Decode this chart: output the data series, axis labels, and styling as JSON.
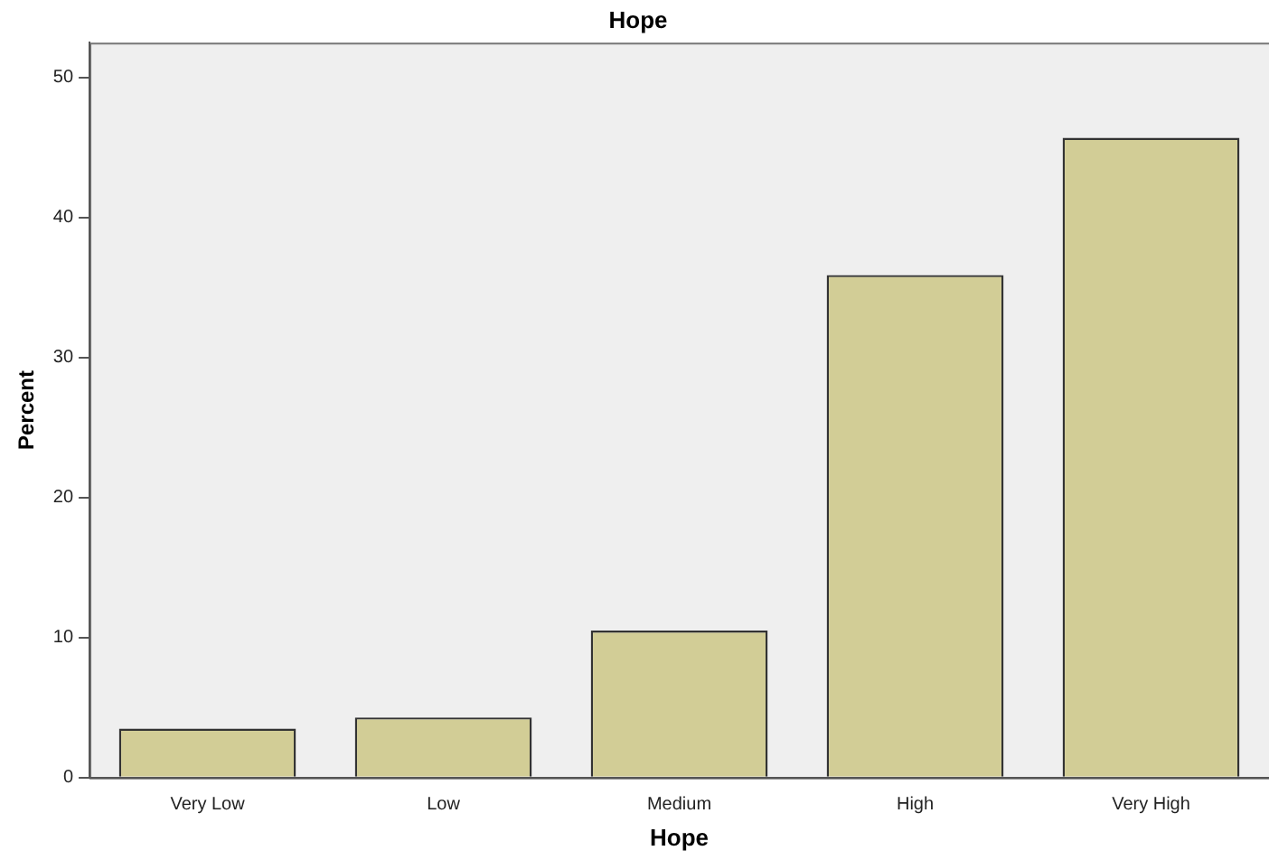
{
  "chart_data": {
    "type": "bar",
    "title": "Hope",
    "xlabel": "Hope",
    "ylabel": "Percent",
    "categories": [
      "Very Low",
      "Low",
      "Medium",
      "High",
      "Very High"
    ],
    "values": [
      3.5,
      4.3,
      10.5,
      35.9,
      45.7
    ],
    "color": "#d2cd96",
    "ylim": [
      0,
      52.5
    ],
    "yticks": [
      0,
      10,
      20,
      30,
      40,
      50
    ],
    "grid": false,
    "legend": false
  }
}
